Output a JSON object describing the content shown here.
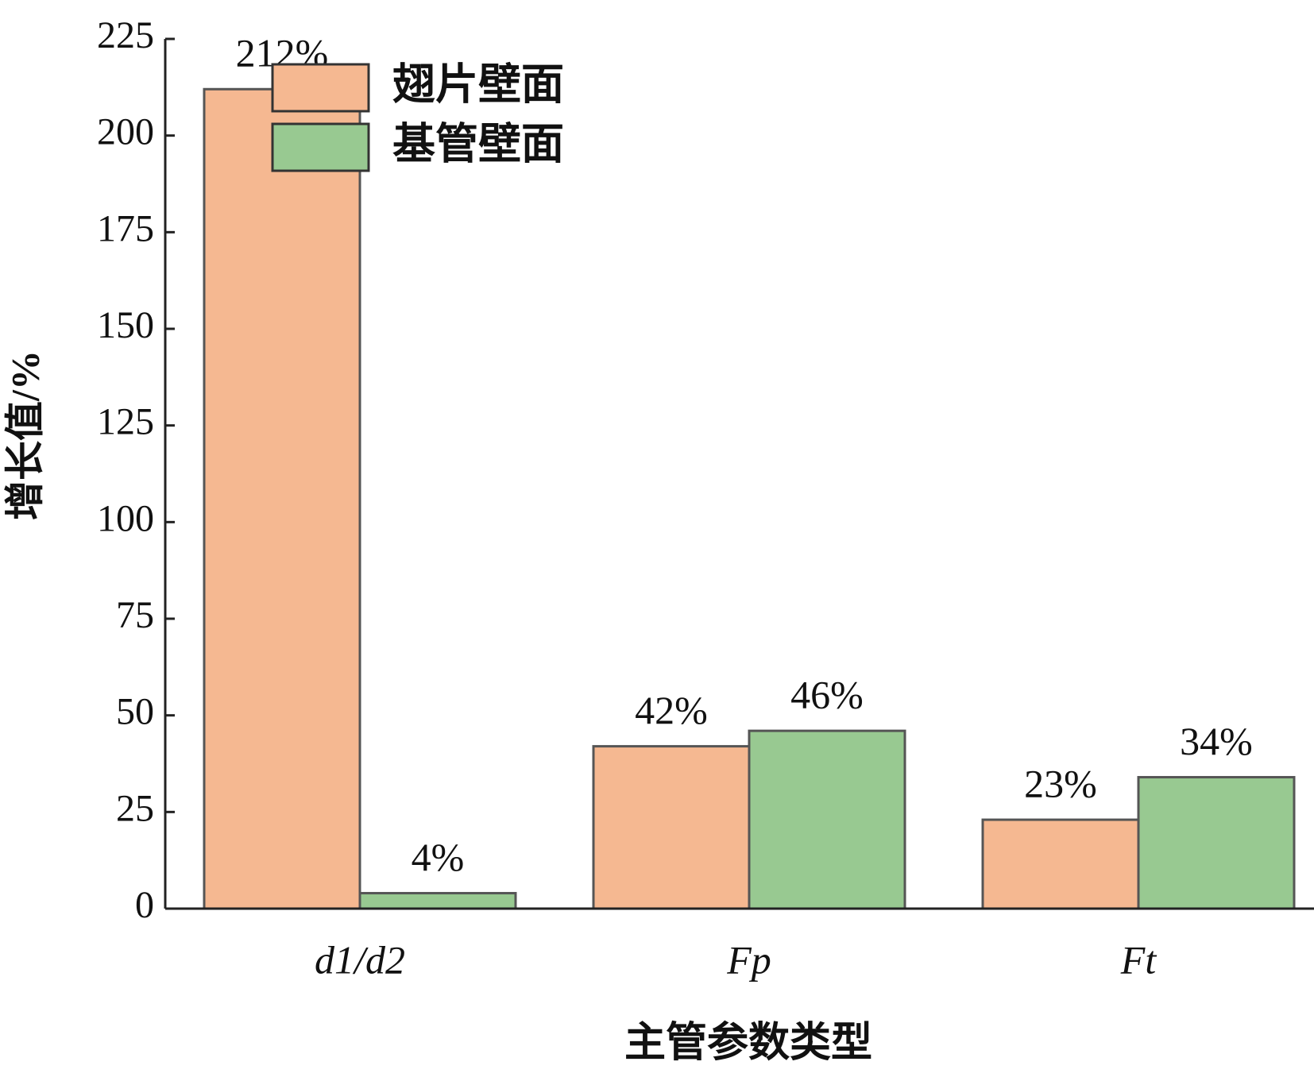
{
  "chart_data": {
    "type": "bar",
    "categories": [
      "d1/d2",
      "Fp",
      "Ft"
    ],
    "series": [
      {
        "name": "翅片壁面",
        "color": "#f5b891",
        "values": [
          212,
          42,
          23
        ],
        "value_labels": [
          "212%",
          "42%",
          "23%"
        ]
      },
      {
        "name": "基管壁面",
        "color": "#98c991",
        "values": [
          4,
          46,
          34
        ],
        "value_labels": [
          "4%",
          "46%",
          "34%"
        ]
      }
    ],
    "x_label": "主管参数类型",
    "y_label": "增长值/%",
    "ylim": [
      0,
      225
    ],
    "yticks": [
      0,
      25,
      50,
      75,
      100,
      125,
      150,
      175,
      200,
      225
    ],
    "legend": "upper left"
  }
}
